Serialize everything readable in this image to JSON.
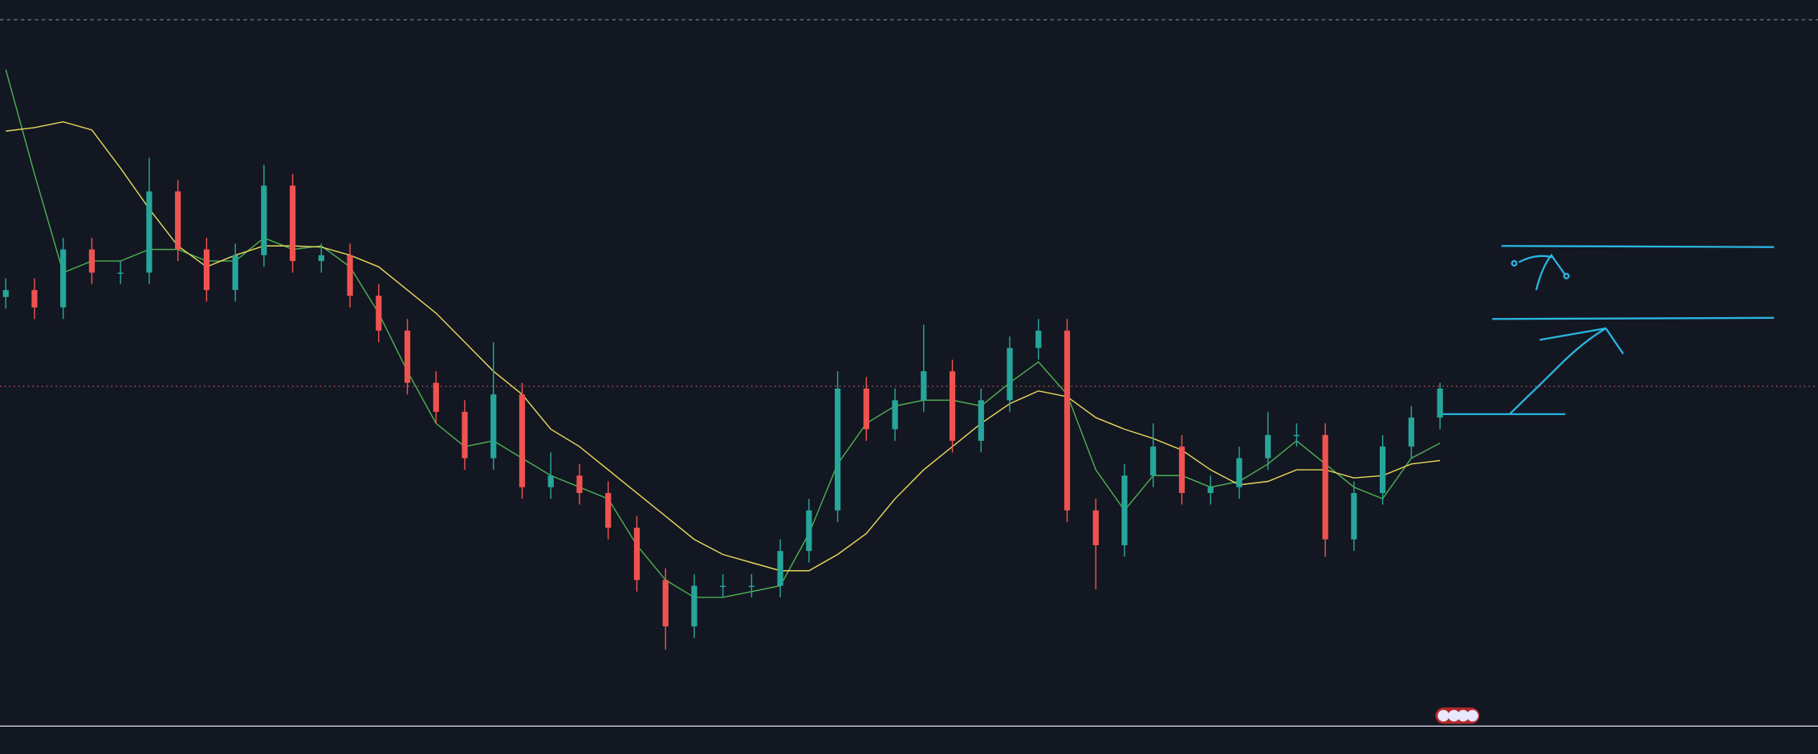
{
  "chart_data": {
    "type": "candlestick",
    "open": [
      370,
      376,
      361,
      411,
      391,
      391,
      461,
      411,
      376,
      406,
      466,
      401,
      406,
      371,
      341,
      296,
      271,
      231,
      286,
      206,
      216,
      201,
      171,
      126,
      86,
      121,
      121,
      121,
      151,
      186,
      291,
      256,
      281,
      306,
      246,
      281,
      326,
      341,
      186,
      156,
      216,
      241,
      201,
      206,
      231,
      251,
      251,
      161,
      201,
      241,
      266
    ],
    "high": [
      386,
      386,
      421,
      421,
      401,
      490,
      471,
      421,
      416,
      484,
      476,
      416,
      416,
      381,
      351,
      306,
      281,
      331,
      296,
      236,
      226,
      211,
      181,
      136,
      131,
      131,
      131,
      161,
      196,
      306,
      301,
      291,
      346,
      316,
      291,
      336,
      351,
      351,
      196,
      226,
      261,
      251,
      216,
      241,
      271,
      261,
      261,
      211,
      251,
      276,
      296
    ],
    "low": [
      360,
      351,
      351,
      381,
      381,
      381,
      401,
      366,
      366,
      396,
      391,
      391,
      361,
      331,
      286,
      261,
      221,
      221,
      196,
      196,
      191,
      161,
      116,
      66,
      76,
      111,
      111,
      111,
      141,
      176,
      246,
      246,
      271,
      236,
      236,
      271,
      316,
      176,
      118,
      146,
      206,
      191,
      191,
      196,
      221,
      241,
      146,
      151,
      191,
      231,
      256
    ],
    "close": [
      376,
      361,
      411,
      391,
      391,
      461,
      411,
      376,
      406,
      466,
      401,
      406,
      371,
      341,
      296,
      271,
      231,
      286,
      206,
      216,
      201,
      171,
      126,
      86,
      121,
      121,
      121,
      151,
      186,
      291,
      256,
      281,
      306,
      246,
      281,
      326,
      341,
      186,
      156,
      216,
      241,
      201,
      206,
      231,
      251,
      251,
      161,
      201,
      241,
      266,
      291
    ],
    "up_color": "#26a69a",
    "down_color": "#ef5350",
    "overlays": [
      {
        "color": "#4caf50",
        "values": [
          566,
          476,
          391,
          401,
          401,
          411,
          411,
          401,
          401,
          421,
          411,
          414,
          396,
          356,
          306,
          261,
          241,
          246,
          231,
          216,
          206,
          196,
          156,
          126,
          111,
          111,
          116,
          121,
          166,
          226,
          261,
          276,
          281,
          281,
          276,
          296,
          314,
          286,
          221,
          186,
          216,
          216,
          206,
          211,
          226,
          246,
          226,
          206,
          196,
          231,
          244
        ]
      },
      {
        "color": "#e6d85a",
        "values": [
          513,
          516,
          521,
          514,
          481,
          446,
          414,
          396,
          406,
          414,
          414,
          413,
          406,
          396,
          376,
          356,
          331,
          306,
          286,
          256,
          241,
          221,
          201,
          181,
          161,
          148,
          141,
          134,
          134,
          148,
          166,
          196,
          221,
          241,
          261,
          278,
          289,
          284,
          266,
          256,
          248,
          238,
          221,
          208,
          211,
          221,
          221,
          214,
          216,
          226,
          229
        ]
      }
    ],
    "ylim": [
      0,
      626
    ]
  }
}
